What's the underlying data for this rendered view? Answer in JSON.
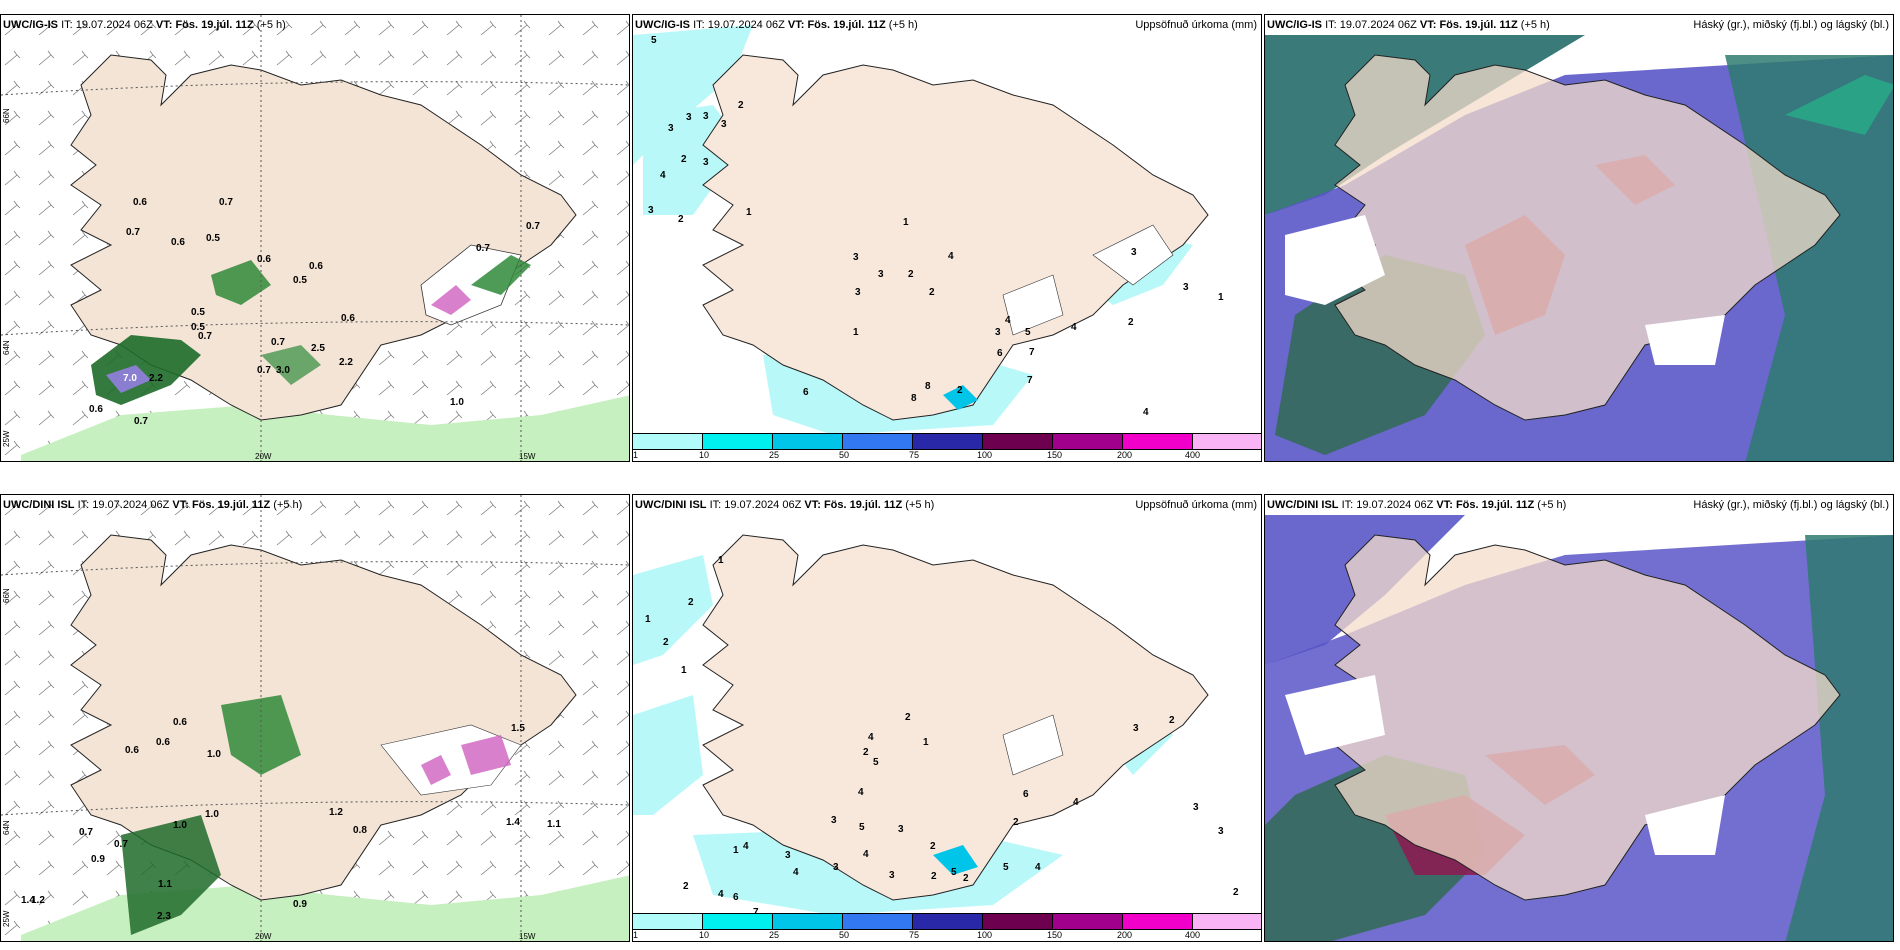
{
  "rows": [
    {
      "model": "UWC/IG-IS",
      "it_label": "IT:",
      "it_value": "19.07.2024 06Z",
      "vt_label": "VT:",
      "vt_value": "Fös. 19.júl. 11Z",
      "lead": "(+5 h)"
    },
    {
      "model": "UWC/DINI ISL",
      "it_label": "IT:",
      "it_value": "19.07.2024 06Z",
      "vt_label": "VT:",
      "vt_value": "Fös. 19.júl. 11Z",
      "lead": "(+5 h)"
    }
  ],
  "precip_title": "Uppsöfnuð úrkoma (mm)",
  "cloud_title": "Háský (gr.), miðský (fj.bl.) og lágský (bl.)",
  "axis_labels": {
    "lat_66": "66N",
    "lat_64": "64N",
    "lon_25": "25W",
    "lon_20": "20W",
    "lon_15": "15W"
  },
  "colorbar": {
    "colors": [
      "#b2fbfb",
      "#00f0f0",
      "#00c4e8",
      "#3278f0",
      "#2828a8",
      "#6e0050",
      "#a0008c",
      "#f000c8",
      "#f8b4f4"
    ],
    "labels": [
      "1",
      "10",
      "25",
      "50",
      "75",
      "100",
      "150",
      "200",
      "400"
    ]
  },
  "wind_panel_values": [
    [
      "0.6",
      "0.7",
      "0.7",
      "0.6",
      "0.5",
      "0.6",
      "0.5",
      "0.6",
      "0.5",
      "0.5",
      "0.7",
      "0.6",
      "0.7",
      "0.7",
      "7.0",
      "2.2",
      "0.6",
      "0.7",
      "3.0",
      "2.5",
      "2.2",
      "1.0",
      "0.7",
      "0.7"
    ],
    [
      "0.6",
      "0.6",
      "0.7",
      "0.7",
      "0.9",
      "1.0",
      "1.0",
      "1.2",
      "0.8",
      "1.4",
      "1.2",
      "1.1",
      "1.5",
      "1.4",
      "1.1",
      "2.3",
      "0.9",
      "1.0",
      "0.6"
    ]
  ],
  "precip_panel_values": [
    [
      "5",
      "3",
      "3",
      "3",
      "3",
      "2",
      "4",
      "2",
      "1",
      "3",
      "3",
      "2",
      "3",
      "3",
      "1",
      "3",
      "2",
      "1",
      "4",
      "2",
      "4",
      "5",
      "7",
      "6",
      "8",
      "8",
      "2",
      "3",
      "2",
      "6",
      "4",
      "4",
      "7",
      "3",
      "3",
      "1"
    ],
    [
      "1",
      "1",
      "2",
      "2",
      "1",
      "2",
      "4",
      "4",
      "5",
      "2",
      "1",
      "3",
      "5",
      "4",
      "3",
      "1",
      "4",
      "3",
      "2",
      "2",
      "3",
      "5",
      "2",
      "2",
      "1",
      "4",
      "6",
      "7",
      "3",
      "4",
      "5",
      "2",
      "6",
      "4",
      "4",
      "3",
      "3",
      "2",
      "2",
      "3",
      "2"
    ]
  ]
}
